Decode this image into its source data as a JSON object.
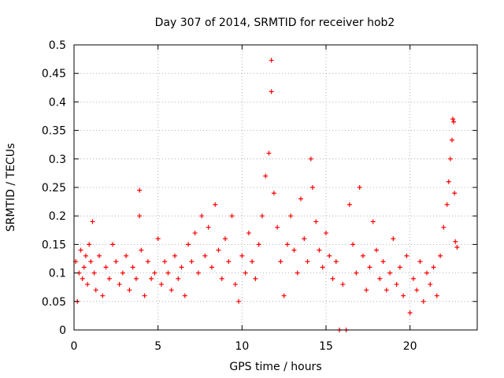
{
  "chart_data": {
    "type": "scatter",
    "title": "Day 307 of 2014, SRMTID for receiver hob2",
    "xlabel": "GPS time / hours",
    "ylabel": "SRMTID / TECUs",
    "xlim": [
      0,
      24
    ],
    "ylim": [
      0,
      0.5
    ],
    "xticks": [
      0,
      5,
      10,
      15,
      20
    ],
    "yticks": [
      0,
      0.05,
      0.1,
      0.15,
      0.2,
      0.25,
      0.3,
      0.35,
      0.4,
      0.45,
      0.5
    ],
    "xtick_labels": [
      "0",
      "5",
      "10",
      "15",
      "20"
    ],
    "ytick_labels": [
      "0",
      "0.05",
      "0.1",
      "0.15",
      "0.2",
      "0.25",
      "0.3",
      "0.35",
      "0.4",
      "0.45",
      "0.5"
    ],
    "grid": true,
    "series": [
      {
        "name": "SRMTID",
        "marker": "+",
        "color": "#ff0000",
        "points": [
          [
            0.1,
            0.12
          ],
          [
            0.2,
            0.05
          ],
          [
            0.3,
            0.1
          ],
          [
            0.4,
            0.14
          ],
          [
            0.5,
            0.09
          ],
          [
            0.6,
            0.11
          ],
          [
            0.7,
            0.13
          ],
          [
            0.8,
            0.08
          ],
          [
            0.9,
            0.15
          ],
          [
            1.0,
            0.12
          ],
          [
            1.1,
            0.19
          ],
          [
            1.2,
            0.1
          ],
          [
            1.3,
            0.07
          ],
          [
            1.5,
            0.13
          ],
          [
            1.7,
            0.06
          ],
          [
            1.9,
            0.11
          ],
          [
            2.1,
            0.09
          ],
          [
            2.3,
            0.15
          ],
          [
            2.5,
            0.12
          ],
          [
            2.7,
            0.08
          ],
          [
            2.9,
            0.1
          ],
          [
            3.1,
            0.13
          ],
          [
            3.3,
            0.07
          ],
          [
            3.5,
            0.11
          ],
          [
            3.7,
            0.09
          ],
          [
            3.9,
            0.245
          ],
          [
            3.9,
            0.2
          ],
          [
            4.0,
            0.14
          ],
          [
            4.2,
            0.06
          ],
          [
            4.4,
            0.12
          ],
          [
            4.6,
            0.09
          ],
          [
            4.8,
            0.1
          ],
          [
            5.0,
            0.16
          ],
          [
            5.2,
            0.08
          ],
          [
            5.4,
            0.12
          ],
          [
            5.6,
            0.1
          ],
          [
            5.8,
            0.07
          ],
          [
            6.0,
            0.13
          ],
          [
            6.2,
            0.09
          ],
          [
            6.4,
            0.11
          ],
          [
            6.6,
            0.06
          ],
          [
            6.8,
            0.15
          ],
          [
            7.0,
            0.12
          ],
          [
            7.2,
            0.17
          ],
          [
            7.4,
            0.1
          ],
          [
            7.6,
            0.2
          ],
          [
            7.8,
            0.13
          ],
          [
            8.0,
            0.18
          ],
          [
            8.2,
            0.11
          ],
          [
            8.4,
            0.22
          ],
          [
            8.6,
            0.14
          ],
          [
            8.8,
            0.09
          ],
          [
            9.0,
            0.16
          ],
          [
            9.2,
            0.12
          ],
          [
            9.4,
            0.2
          ],
          [
            9.6,
            0.08
          ],
          [
            9.8,
            0.05
          ],
          [
            10.0,
            0.13
          ],
          [
            10.2,
            0.1
          ],
          [
            10.4,
            0.17
          ],
          [
            10.6,
            0.12
          ],
          [
            10.8,
            0.09
          ],
          [
            11.0,
            0.15
          ],
          [
            11.2,
            0.2
          ],
          [
            11.4,
            0.27
          ],
          [
            11.6,
            0.31
          ],
          [
            11.75,
            0.473
          ],
          [
            11.75,
            0.418
          ],
          [
            11.9,
            0.24
          ],
          [
            12.1,
            0.18
          ],
          [
            12.3,
            0.12
          ],
          [
            12.5,
            0.06
          ],
          [
            12.7,
            0.15
          ],
          [
            12.9,
            0.2
          ],
          [
            13.1,
            0.14
          ],
          [
            13.3,
            0.1
          ],
          [
            13.5,
            0.23
          ],
          [
            13.7,
            0.16
          ],
          [
            13.9,
            0.12
          ],
          [
            14.1,
            0.3
          ],
          [
            14.2,
            0.25
          ],
          [
            14.4,
            0.19
          ],
          [
            14.6,
            0.14
          ],
          [
            14.8,
            0.11
          ],
          [
            15.0,
            0.17
          ],
          [
            15.2,
            0.13
          ],
          [
            15.4,
            0.09
          ],
          [
            15.6,
            0.12
          ],
          [
            15.8,
            0.0
          ],
          [
            16.0,
            0.08
          ],
          [
            16.2,
            0.0
          ],
          [
            16.4,
            0.22
          ],
          [
            16.6,
            0.15
          ],
          [
            16.8,
            0.1
          ],
          [
            17.0,
            0.25
          ],
          [
            17.2,
            0.13
          ],
          [
            17.4,
            0.07
          ],
          [
            17.6,
            0.11
          ],
          [
            17.8,
            0.19
          ],
          [
            18.0,
            0.14
          ],
          [
            18.2,
            0.09
          ],
          [
            18.4,
            0.12
          ],
          [
            18.6,
            0.07
          ],
          [
            18.8,
            0.1
          ],
          [
            19.0,
            0.16
          ],
          [
            19.2,
            0.08
          ],
          [
            19.4,
            0.11
          ],
          [
            19.6,
            0.06
          ],
          [
            19.8,
            0.13
          ],
          [
            20.0,
            0.03
          ],
          [
            20.2,
            0.09
          ],
          [
            20.4,
            0.07
          ],
          [
            20.6,
            0.12
          ],
          [
            20.8,
            0.05
          ],
          [
            21.0,
            0.1
          ],
          [
            21.2,
            0.08
          ],
          [
            21.4,
            0.11
          ],
          [
            21.6,
            0.06
          ],
          [
            21.8,
            0.13
          ],
          [
            22.0,
            0.18
          ],
          [
            22.2,
            0.22
          ],
          [
            22.3,
            0.26
          ],
          [
            22.4,
            0.3
          ],
          [
            22.5,
            0.333
          ],
          [
            22.55,
            0.37
          ],
          [
            22.6,
            0.365
          ],
          [
            22.65,
            0.24
          ],
          [
            22.7,
            0.155
          ],
          [
            22.8,
            0.145
          ]
        ]
      }
    ]
  }
}
